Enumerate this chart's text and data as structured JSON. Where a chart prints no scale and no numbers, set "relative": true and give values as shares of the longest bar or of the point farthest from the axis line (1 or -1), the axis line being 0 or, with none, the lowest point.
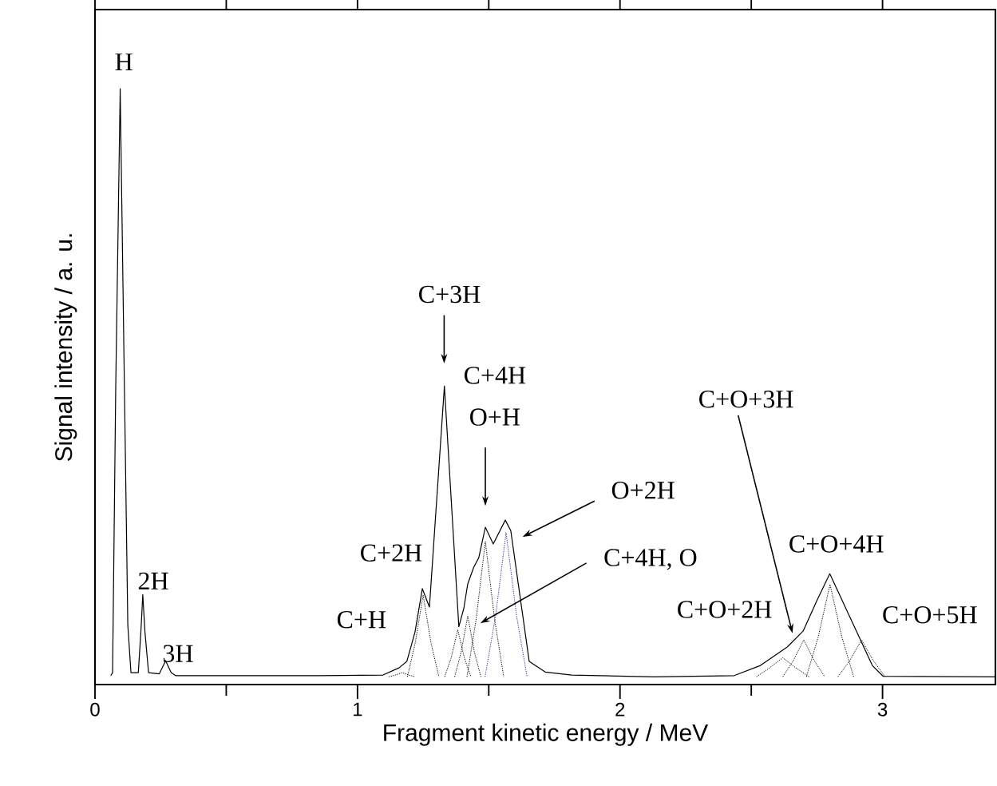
{
  "chart_data": {
    "type": "line",
    "relative": true,
    "xlabel": "Fragment kinetic energy / MeV",
    "ylabel": "Signal intensity / a. u.",
    "xlim": [
      0,
      3.43
    ],
    "xticks": [
      0,
      {
        "value": 0.5,
        "label": null
      },
      1,
      {
        "value": 1.5,
        "label": null
      },
      2,
      {
        "value": 2.5,
        "label": null
      },
      3
    ],
    "marker": "none",
    "line_style": "solid",
    "series": [
      {
        "color": "#000000",
        "x": [
          0.06,
          0.067,
          0.079,
          0.096,
          0.112,
          0.125,
          0.137,
          0.165,
          0.175,
          0.182,
          0.19,
          0.204,
          0.245,
          0.269,
          0.29,
          0.307,
          0.854,
          1.097,
          1.158,
          1.188,
          1.219,
          1.247,
          1.274,
          1.331,
          1.386,
          1.405,
          1.42,
          1.442,
          1.462,
          1.487,
          1.517,
          1.563,
          1.584,
          1.624,
          1.654,
          1.715,
          1.816,
          2.131,
          2.435,
          2.535,
          2.637,
          2.698,
          2.748,
          2.799,
          2.839,
          2.9,
          2.961,
          3.002,
          3.43
        ],
        "values": [
          0.015,
          0.02,
          0.5,
          1.0,
          0.5,
          0.1,
          0.02,
          0.02,
          0.09,
          0.151,
          0.09,
          0.02,
          0.018,
          0.04,
          0.02,
          0.015,
          0.015,
          0.016,
          0.028,
          0.039,
          0.088,
          0.161,
          0.13,
          0.501,
          0.097,
          0.128,
          0.169,
          0.196,
          0.213,
          0.264,
          0.236,
          0.276,
          0.258,
          0.133,
          0.039,
          0.021,
          0.016,
          0.013,
          0.015,
          0.032,
          0.063,
          0.09,
          0.139,
          0.186,
          0.148,
          0.09,
          0.032,
          0.014,
          0.013
        ]
      },
      {
        "color": "#000000",
        "line_style": "dotted",
        "x": [
          1.12,
          1.145,
          1.17,
          1.195,
          1.22
        ],
        "values": [
          0.013,
          0.016,
          0.02,
          0.016,
          0.013
        ]
      },
      {
        "color": "#000000",
        "line_style": "dotted",
        "x": [
          1.19,
          1.22,
          1.25,
          1.28,
          1.31
        ],
        "values": [
          0.013,
          0.07,
          0.15,
          0.07,
          0.013
        ]
      },
      {
        "color": "#000000",
        "line_style": "dotted",
        "x": [
          1.332,
          1.357,
          1.382,
          1.407,
          1.432
        ],
        "values": [
          0.013,
          0.045,
          0.092,
          0.045,
          0.013
        ]
      },
      {
        "color": "#000000",
        "line_style": "dotted",
        "x": [
          1.37,
          1.395,
          1.42,
          1.445,
          1.47
        ],
        "values": [
          0.013,
          0.055,
          0.115,
          0.055,
          0.013
        ]
      },
      {
        "color": "#000000",
        "line_style": "dotted",
        "x": [
          1.417,
          1.452,
          1.487,
          1.522,
          1.557
        ],
        "values": [
          0.013,
          0.11,
          0.24,
          0.11,
          0.013
        ]
      },
      {
        "color": "#2a2a9a",
        "line_style": "dotted",
        "x": [
          1.486,
          1.526,
          1.566,
          1.606,
          1.646
        ],
        "values": [
          0.013,
          0.115,
          0.255,
          0.115,
          0.013
        ]
      },
      {
        "color": "#000000",
        "line_style": "dotted",
        "x": [
          2.52,
          2.57,
          2.62,
          2.67,
          2.72
        ],
        "values": [
          0.013,
          0.028,
          0.045,
          0.028,
          0.013
        ]
      },
      {
        "color": "#000000",
        "line_style": "dotted",
        "x": [
          2.62,
          2.66,
          2.7,
          2.74,
          2.78
        ],
        "values": [
          0.013,
          0.04,
          0.075,
          0.04,
          0.013
        ]
      },
      {
        "color": "#000000",
        "line_style": "dotted",
        "x": [
          2.71,
          2.755,
          2.8,
          2.845,
          2.89
        ],
        "values": [
          0.013,
          0.08,
          0.168,
          0.08,
          0.013
        ]
      },
      {
        "color": "#000000",
        "line_style": "dotted",
        "x": [
          2.83,
          2.875,
          2.92,
          2.965,
          3.01
        ],
        "values": [
          0.013,
          0.04,
          0.075,
          0.04,
          0.013
        ]
      }
    ],
    "annotations": [
      "H",
      "2H",
      "3H",
      "C+H",
      "C+2H",
      "C+3H",
      "C+4H",
      "O+H",
      "O+2H",
      "C+4H, O",
      "C+O+3H",
      "C+O+4H",
      "C+O+2H",
      "C+O+5H"
    ]
  }
}
